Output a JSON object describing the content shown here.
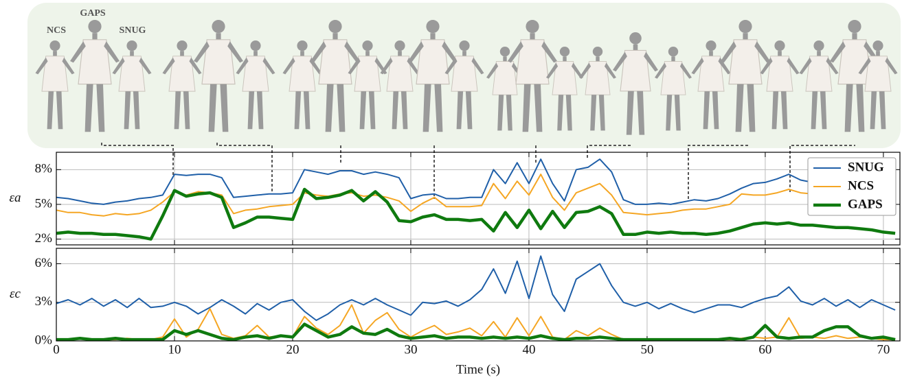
{
  "figure_labels": [
    "NCS",
    "GAPS",
    "SNUG"
  ],
  "chart_data": [
    {
      "type": "line",
      "ylabel": "εa",
      "x": [
        0,
        1,
        2,
        3,
        4,
        5,
        6,
        7,
        8,
        9,
        10,
        11,
        12,
        13,
        14,
        15,
        16,
        17,
        18,
        19,
        20,
        21,
        22,
        23,
        24,
        25,
        26,
        27,
        28,
        29,
        30,
        31,
        32,
        33,
        34,
        35,
        36,
        37,
        38,
        39,
        40,
        41,
        42,
        43,
        44,
        45,
        46,
        47,
        48,
        49,
        50,
        51,
        52,
        53,
        54,
        55,
        56,
        57,
        58,
        59,
        60,
        61,
        62,
        63,
        64,
        65,
        66,
        67,
        68,
        69,
        70,
        71
      ],
      "xlim": [
        0,
        71.4
      ],
      "xticks": [
        0,
        10,
        20,
        30,
        40,
        50,
        60,
        70
      ],
      "ylim": [
        1.5,
        9.5
      ],
      "yticks": [
        {
          "value": 2,
          "label": "2%"
        },
        {
          "value": 5,
          "label": "5%"
        },
        {
          "value": 8,
          "label": "8%"
        }
      ],
      "grid": true,
      "legend": "upper right",
      "series": [
        {
          "name": "SNUG",
          "color": "#1f5fa8",
          "linewidth": 2,
          "values": [
            5.6,
            5.5,
            5.3,
            5.1,
            5.0,
            5.2,
            5.3,
            5.5,
            5.6,
            5.8,
            7.6,
            7.5,
            7.6,
            7.6,
            7.3,
            5.6,
            5.7,
            5.8,
            5.9,
            5.9,
            6.0,
            8.0,
            7.8,
            7.6,
            7.9,
            7.9,
            7.6,
            7.8,
            7.6,
            7.3,
            5.5,
            5.8,
            5.9,
            5.5,
            5.5,
            5.6,
            5.6,
            8.0,
            6.8,
            8.6,
            6.8,
            8.9,
            6.8,
            5.3,
            8.0,
            8.2,
            8.9,
            7.8,
            5.4,
            5.0,
            5.0,
            5.1,
            5.0,
            5.2,
            5.4,
            5.3,
            5.5,
            5.9,
            6.4,
            6.8,
            6.9,
            7.2,
            7.6,
            7.1,
            6.9,
            6.8,
            6.4,
            6.2,
            6.0,
            6.0,
            5.8,
            5.5
          ]
        },
        {
          "name": "NCS",
          "color": "#f5a623",
          "linewidth": 2,
          "values": [
            4.5,
            4.3,
            4.3,
            4.1,
            4.0,
            4.2,
            4.1,
            4.2,
            4.5,
            5.2,
            6.1,
            5.8,
            6.1,
            6.0,
            5.8,
            4.2,
            4.5,
            4.6,
            4.8,
            4.9,
            5.0,
            6.0,
            5.8,
            5.7,
            5.9,
            6.0,
            5.7,
            5.8,
            5.6,
            5.3,
            4.4,
            5.1,
            5.6,
            4.8,
            4.8,
            4.8,
            4.9,
            6.8,
            5.5,
            7.0,
            5.8,
            7.6,
            5.6,
            4.5,
            6.0,
            6.4,
            6.8,
            5.8,
            4.3,
            4.2,
            4.1,
            4.2,
            4.3,
            4.5,
            4.6,
            4.6,
            4.8,
            5.0,
            5.9,
            5.8,
            5.8,
            6.0,
            6.3,
            6.0,
            5.9,
            5.8,
            5.4,
            5.1,
            4.9,
            4.8,
            4.6,
            4.3
          ]
        },
        {
          "name": "GAPS",
          "color": "#0f7a0f",
          "linewidth": 4.5,
          "values": [
            2.5,
            2.6,
            2.5,
            2.5,
            2.4,
            2.4,
            2.3,
            2.2,
            2.0,
            4.0,
            6.2,
            5.7,
            5.9,
            6.0,
            5.6,
            3.0,
            3.4,
            3.9,
            3.9,
            3.8,
            3.7,
            6.3,
            5.5,
            5.6,
            5.8,
            6.2,
            5.3,
            6.1,
            5.2,
            3.6,
            3.5,
            3.9,
            4.1,
            3.7,
            3.7,
            3.6,
            3.7,
            2.7,
            4.3,
            3.0,
            4.5,
            2.9,
            4.4,
            3.0,
            4.3,
            4.4,
            4.8,
            4.2,
            2.4,
            2.4,
            2.6,
            2.5,
            2.6,
            2.5,
            2.5,
            2.4,
            2.5,
            2.7,
            3.0,
            3.3,
            3.4,
            3.3,
            3.4,
            3.2,
            3.2,
            3.1,
            3.0,
            3.0,
            2.9,
            2.8,
            2.6,
            2.5
          ]
        }
      ]
    },
    {
      "type": "line",
      "ylabel": "εc",
      "xlabel": "Time (s)",
      "x": [
        0,
        1,
        2,
        3,
        4,
        5,
        6,
        7,
        8,
        9,
        10,
        11,
        12,
        13,
        14,
        15,
        16,
        17,
        18,
        19,
        20,
        21,
        22,
        23,
        24,
        25,
        26,
        27,
        28,
        29,
        30,
        31,
        32,
        33,
        34,
        35,
        36,
        37,
        38,
        39,
        40,
        41,
        42,
        43,
        44,
        45,
        46,
        47,
        48,
        49,
        50,
        51,
        52,
        53,
        54,
        55,
        56,
        57,
        58,
        59,
        60,
        61,
        62,
        63,
        64,
        65,
        66,
        67,
        68,
        69,
        70,
        71
      ],
      "xlim": [
        0,
        71.4
      ],
      "xticks": [
        0,
        10,
        20,
        30,
        40,
        50,
        60,
        70
      ],
      "ylim": [
        0,
        7.2
      ],
      "yticks": [
        {
          "value": 0,
          "label": "0%"
        },
        {
          "value": 3,
          "label": "3%"
        },
        {
          "value": 6,
          "label": "6%"
        }
      ],
      "grid": true,
      "series": [
        {
          "name": "SNUG",
          "color": "#1f5fa8",
          "linewidth": 2,
          "values": [
            2.9,
            3.2,
            2.8,
            3.3,
            2.7,
            3.2,
            2.6,
            3.3,
            2.6,
            2.7,
            3.0,
            2.7,
            2.1,
            2.6,
            3.2,
            2.7,
            2.1,
            2.9,
            2.4,
            3.0,
            3.2,
            2.3,
            1.6,
            2.1,
            2.8,
            3.2,
            2.8,
            3.3,
            2.8,
            2.4,
            2.0,
            3.0,
            2.9,
            3.1,
            2.7,
            3.2,
            4.0,
            5.6,
            3.7,
            6.2,
            3.3,
            6.6,
            3.6,
            2.3,
            4.8,
            5.4,
            6.0,
            4.3,
            3.0,
            2.7,
            3.0,
            2.5,
            2.9,
            2.5,
            2.2,
            2.5,
            2.8,
            2.8,
            2.6,
            3.0,
            3.3,
            3.5,
            4.2,
            3.1,
            2.8,
            3.3,
            2.7,
            3.2,
            2.6,
            3.2,
            2.8,
            2.4
          ]
        },
        {
          "name": "NCS",
          "color": "#f5a623",
          "linewidth": 2,
          "values": [
            0.1,
            0.1,
            0.2,
            0.1,
            0.1,
            0.1,
            0.2,
            0.1,
            0.1,
            0.3,
            1.7,
            0.3,
            0.9,
            2.5,
            0.5,
            0.2,
            0.4,
            1.2,
            0.3,
            0.4,
            0.3,
            1.9,
            1.0,
            0.5,
            1.2,
            2.8,
            0.6,
            1.6,
            2.2,
            0.9,
            0.3,
            0.8,
            1.2,
            0.5,
            0.7,
            1.0,
            0.4,
            1.5,
            0.3,
            1.8,
            0.4,
            1.9,
            0.3,
            0.1,
            0.8,
            0.4,
            1.0,
            0.5,
            0.1,
            0.1,
            0.1,
            0.1,
            0.1,
            0.1,
            0.1,
            0.1,
            0.1,
            0.1,
            0.2,
            0.3,
            0.2,
            0.3,
            1.8,
            0.2,
            0.3,
            0.2,
            0.4,
            0.2,
            0.3,
            0.2,
            0.1,
            0.1
          ]
        },
        {
          "name": "GAPS",
          "color": "#0f7a0f",
          "linewidth": 4.5,
          "values": [
            0.1,
            0.1,
            0.2,
            0.1,
            0.1,
            0.2,
            0.1,
            0.1,
            0.1,
            0.1,
            0.8,
            0.5,
            0.8,
            0.5,
            0.2,
            0.1,
            0.3,
            0.4,
            0.2,
            0.4,
            0.3,
            1.3,
            0.8,
            0.3,
            0.5,
            1.1,
            0.6,
            0.5,
            0.9,
            0.4,
            0.2,
            0.3,
            0.4,
            0.2,
            0.3,
            0.3,
            0.2,
            0.3,
            0.2,
            0.3,
            0.2,
            0.4,
            0.2,
            0.1,
            0.2,
            0.2,
            0.3,
            0.2,
            0.1,
            0.1,
            0.1,
            0.1,
            0.1,
            0.1,
            0.1,
            0.1,
            0.1,
            0.2,
            0.1,
            0.3,
            1.2,
            0.3,
            0.2,
            0.3,
            0.3,
            0.8,
            1.1,
            1.1,
            0.4,
            0.2,
            0.3,
            0.1
          ]
        }
      ]
    }
  ]
}
